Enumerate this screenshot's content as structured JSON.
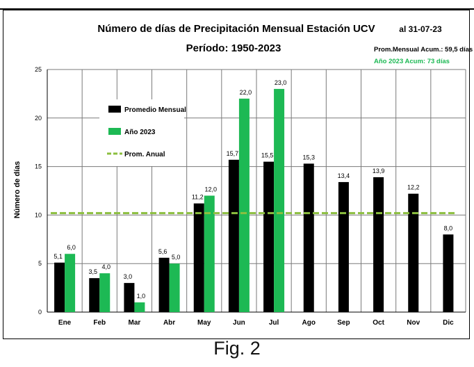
{
  "chart_data": {
    "type": "bar",
    "title": "Número de días de Precipitación Mensual Estación UCV",
    "subtitle": "Período: 1950-2023",
    "date_label": "al 31-07-23",
    "note_avg": "Prom.Mensual  Acum.: 59,5 días",
    "note_year": "Año 2023 Acum: 73 días",
    "ylabel": "Número de días",
    "ylim": [
      0,
      25
    ],
    "yticks": [
      0,
      5,
      10,
      15,
      20,
      25
    ],
    "grid": true,
    "legend_position": "top-left",
    "categories": [
      "Ene",
      "Feb",
      "Mar",
      "Abr",
      "May",
      "Jun",
      "Jul",
      "Ago",
      "Sep",
      "Oct",
      "Nov",
      "Dic"
    ],
    "series": [
      {
        "name": "Promedio Mensual",
        "color": "#000000",
        "values": [
          5.1,
          3.5,
          3.0,
          5.6,
          11.2,
          15.7,
          15.5,
          15.3,
          13.4,
          13.9,
          12.2,
          8.0
        ],
        "labels": [
          "5,1",
          "3,5",
          "3,0",
          "5,6",
          "11,2",
          "15,7",
          "15,5",
          "15,3",
          "13,4",
          "13,9",
          "12,2",
          "8,0"
        ]
      },
      {
        "name": "Año 2023",
        "color": "#1db954",
        "values": [
          6.0,
          4.0,
          1.0,
          5.0,
          12.0,
          22.0,
          23.0,
          null,
          null,
          null,
          null,
          null
        ],
        "labels": [
          "6,0",
          "4,0",
          "1,0",
          "5,0",
          "12,0",
          "22,0",
          "23,0",
          "",
          "",
          "",
          "",
          ""
        ]
      }
    ],
    "reference_line": {
      "name": "Prom. Anual",
      "value": 10.2,
      "color": "#8cbf3f",
      "style": "dashed"
    }
  },
  "caption": "Fig. 2"
}
